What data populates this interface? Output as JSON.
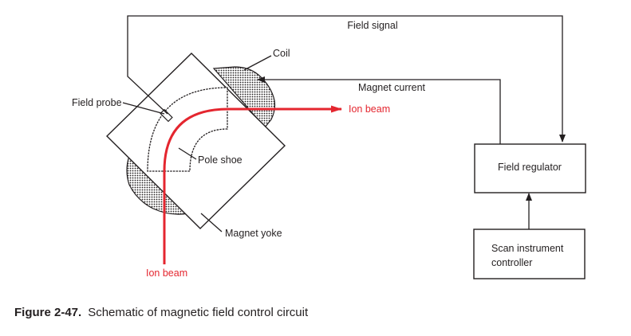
{
  "labels": {
    "field_signal": "Field signal",
    "coil": "Coil",
    "magnet_current": "Magnet current",
    "field_probe": "Field probe",
    "ion_beam_out": "Ion beam",
    "pole_shoe": "Pole shoe",
    "field_regulator": "Field regulator",
    "magnet_yoke": "Magnet yoke",
    "scan_controller_line1": "Scan instrument",
    "scan_controller_line2": "controller",
    "ion_beam_in": "Ion beam"
  },
  "caption": {
    "number": "Figure 2-47.",
    "text": "Schematic of magnetic field control circuit"
  },
  "colors": {
    "line": "#231f20",
    "ion_beam": "#e4262f"
  }
}
